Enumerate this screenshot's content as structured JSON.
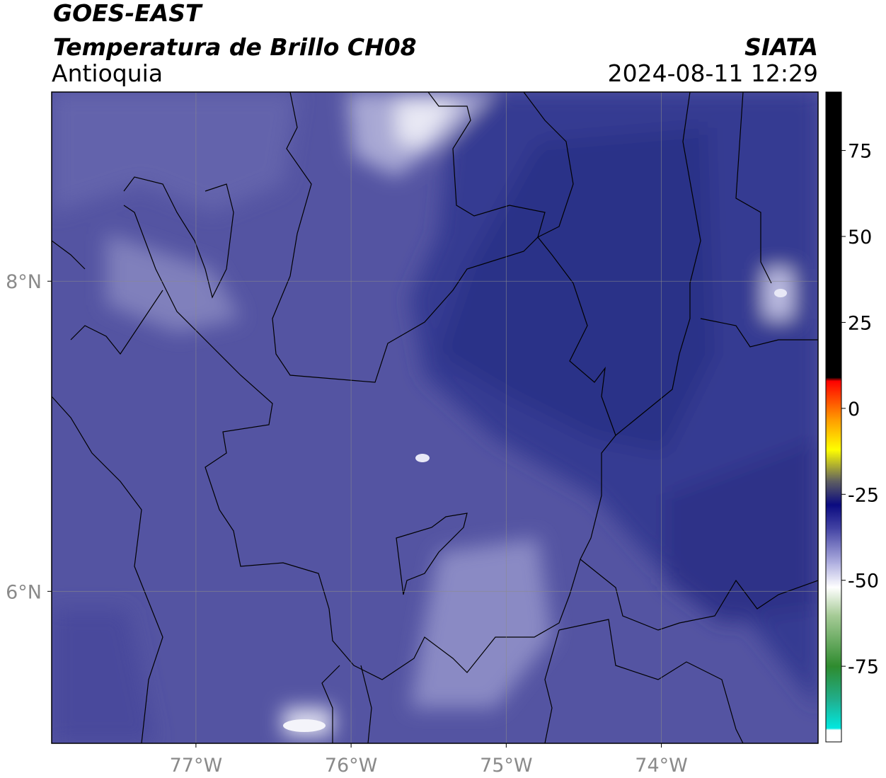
{
  "chart_data": {
    "type": "map",
    "title": "GOES-EAST",
    "subtitle": "Temperatura de Brillo CH08",
    "region": "Antioquia",
    "source": "SIATA",
    "timestamp": "2024-08-11 12:29",
    "xlim": [
      -77.93,
      -72.99
    ],
    "ylim": [
      5.02,
      9.22
    ],
    "xticks": [
      {
        "value": -77,
        "label": "77°W"
      },
      {
        "value": -76,
        "label": "76°W"
      },
      {
        "value": -75,
        "label": "75°W"
      },
      {
        "value": -74,
        "label": "74°W"
      }
    ],
    "yticks": [
      {
        "value": 6,
        "label": "6°N"
      },
      {
        "value": 8,
        "label": "8°N"
      }
    ],
    "grid": true,
    "colorbar": {
      "clim": [
        -97,
        92
      ],
      "ticks": [
        -75,
        -50,
        -25,
        0,
        25,
        50,
        75
      ],
      "colormap": [
        {
          "value": -97,
          "color": "#ffffff"
        },
        {
          "value": -93.5,
          "color": "#ffffff"
        },
        {
          "value": -93,
          "color": "#00e8e0"
        },
        {
          "value": -85,
          "color": "#20b090"
        },
        {
          "value": -75,
          "color": "#2e8b2e"
        },
        {
          "value": -60,
          "color": "#a8cc98"
        },
        {
          "value": -52,
          "color": "#ffffff"
        },
        {
          "value": -45,
          "color": "#b0b0e0"
        },
        {
          "value": -35,
          "color": "#4444a4"
        },
        {
          "value": -28,
          "color": "#0a0a80"
        },
        {
          "value": -21,
          "color": "#606060"
        },
        {
          "value": -12,
          "color": "#ffff00"
        },
        {
          "value": -3,
          "color": "#ff9900"
        },
        {
          "value": 8,
          "color": "#ff0000"
        },
        {
          "value": 9,
          "color": "#000000"
        },
        {
          "value": 92,
          "color": "#000000"
        }
      ]
    }
  }
}
